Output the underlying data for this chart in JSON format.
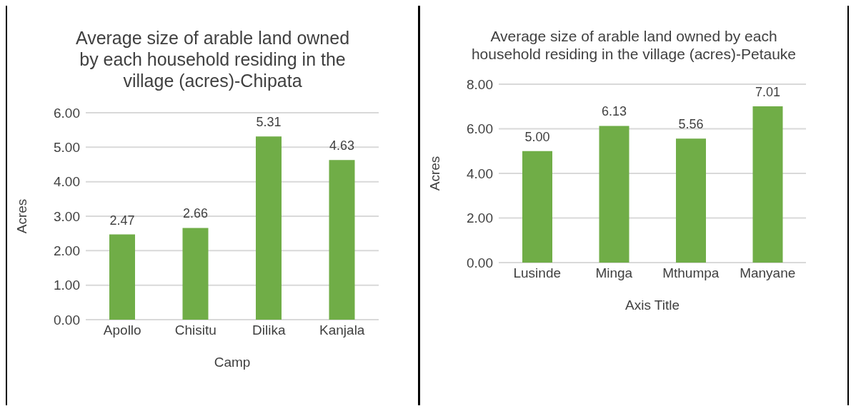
{
  "chart_data": [
    {
      "type": "bar",
      "title": "Average size of arable land owned by each household residing in the village (acres)-Chipata",
      "categories": [
        "Apollo",
        "Chisitu",
        "Dilika",
        "Kanjala"
      ],
      "values": [
        2.47,
        2.66,
        5.31,
        4.63
      ],
      "value_labels": [
        "2.47",
        "2.66",
        "5.31",
        "4.63"
      ],
      "color": "#70ad47",
      "xlabel": "Camp",
      "ylabel": "Acres",
      "ylim": [
        0,
        6
      ],
      "yticks": [
        {
          "value": 0,
          "label": "0.00"
        },
        {
          "value": 1,
          "label": "1.00"
        },
        {
          "value": 2,
          "label": "2.00"
        },
        {
          "value": 3,
          "label": "3.00"
        },
        {
          "value": 4,
          "label": "4.00"
        },
        {
          "value": 5,
          "label": "5.00"
        },
        {
          "value": 6,
          "label": "6.00"
        }
      ],
      "grid": "y"
    },
    {
      "type": "bar",
      "title": "Average size of arable land owned by each household residing in the village (acres)-Petauke",
      "categories": [
        "Lusinde",
        "Minga",
        "Mthumpa",
        "Manyane"
      ],
      "values": [
        5.0,
        6.13,
        5.56,
        7.01
      ],
      "value_labels": [
        "5.00",
        "6.13",
        "5.56",
        "7.01"
      ],
      "color": "#70ad47",
      "xlabel": "Axis Title",
      "ylabel": "Acres",
      "ylim": [
        0,
        8
      ],
      "yticks": [
        {
          "value": 0,
          "label": "0.00"
        },
        {
          "value": 2,
          "label": "2.00"
        },
        {
          "value": 4,
          "label": "4.00"
        },
        {
          "value": 6,
          "label": "6.00"
        },
        {
          "value": 8,
          "label": "8.00"
        }
      ],
      "grid": "y"
    }
  ]
}
